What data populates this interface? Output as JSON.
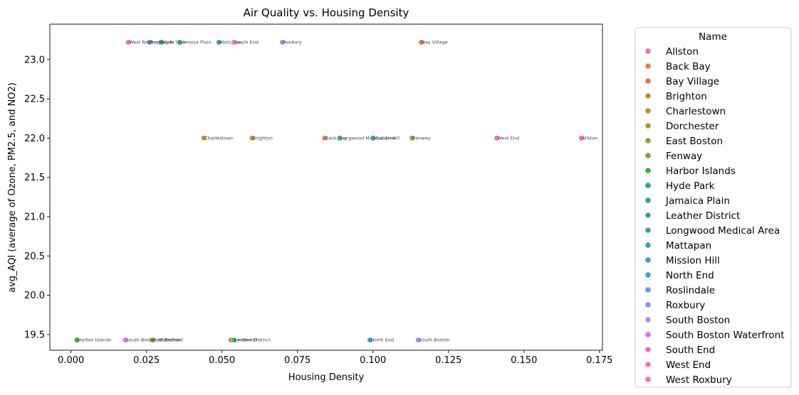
{
  "chart_data": {
    "type": "scatter",
    "title": "Air Quality vs. Housing Density",
    "xlabel": "Housing Density",
    "ylabel": "avg_AQI (average of Ozone, PM2.5, and NO2)",
    "xlim": [
      -0.007,
      0.176
    ],
    "ylim": [
      19.3,
      23.45
    ],
    "xticks": [
      0.0,
      0.025,
      0.05,
      0.075,
      0.1,
      0.125,
      0.15,
      0.175
    ],
    "xtick_labels": [
      "0.000",
      "0.025",
      "0.050",
      "0.075",
      "0.100",
      "0.125",
      "0.150",
      "0.175"
    ],
    "yticks": [
      19.5,
      20.0,
      20.5,
      21.0,
      21.5,
      22.0,
      22.5,
      23.0
    ],
    "ytick_labels": [
      "19.5",
      "20.0",
      "20.5",
      "21.0",
      "21.5",
      "22.0",
      "22.5",
      "23.0"
    ],
    "grid": false,
    "legend_title": "Name",
    "legend_position": "outside-right",
    "series": [
      {
        "name": "Allston",
        "color": "#f0767f",
        "points": [
          {
            "x": 0.169,
            "y": 22.0
          }
        ]
      },
      {
        "name": "Back Bay",
        "color": "#e97b5c",
        "points": [
          {
            "x": 0.084,
            "y": 22.0
          }
        ]
      },
      {
        "name": "Bay Village",
        "color": "#da8039",
        "points": [
          {
            "x": 0.116,
            "y": 23.22
          }
        ]
      },
      {
        "name": "Brighton",
        "color": "#c9892f",
        "points": [
          {
            "x": 0.06,
            "y": 22.0
          }
        ]
      },
      {
        "name": "Charlestown",
        "color": "#b99530",
        "points": [
          {
            "x": 0.044,
            "y": 22.0
          }
        ]
      },
      {
        "name": "Dorchester",
        "color": "#a69b31",
        "points": [
          {
            "x": 0.053,
            "y": 19.43
          }
        ]
      },
      {
        "name": "East Boston",
        "color": "#91a031",
        "points": [
          {
            "x": 0.027,
            "y": 19.43
          }
        ]
      },
      {
        "name": "Fenway",
        "color": "#73a83a",
        "points": [
          {
            "x": 0.113,
            "y": 22.0
          }
        ]
      },
      {
        "name": "Harbor Islands",
        "color": "#39a947",
        "points": [
          {
            "x": 0.002,
            "y": 19.43
          }
        ]
      },
      {
        "name": "Hyde Park",
        "color": "#32a863",
        "points": [
          {
            "x": 0.03,
            "y": 23.22
          }
        ]
      },
      {
        "name": "Jamaica Plain",
        "color": "#34a57a",
        "points": [
          {
            "x": 0.036,
            "y": 23.22
          }
        ]
      },
      {
        "name": "Leather District",
        "color": "#36a38b",
        "points": [
          {
            "x": 0.054,
            "y": 19.43
          }
        ]
      },
      {
        "name": "Longwood Medical Area",
        "color": "#37a29a",
        "points": [
          {
            "x": 0.089,
            "y": 22.0
          }
        ]
      },
      {
        "name": "Mattapan",
        "color": "#39a2ac",
        "points": [
          {
            "x": 0.049,
            "y": 23.22
          }
        ]
      },
      {
        "name": "Mission Hill",
        "color": "#3aa3be",
        "points": [
          {
            "x": 0.1,
            "y": 22.0
          }
        ]
      },
      {
        "name": "North End",
        "color": "#3ba2d1",
        "points": [
          {
            "x": 0.099,
            "y": 19.43
          }
        ]
      },
      {
        "name": "Roslindale",
        "color": "#5a9cf0",
        "points": [
          {
            "x": 0.026,
            "y": 23.22
          }
        ]
      },
      {
        "name": "Roxbury",
        "color": "#9492ee",
        "points": [
          {
            "x": 0.07,
            "y": 23.22
          }
        ]
      },
      {
        "name": "South Boston",
        "color": "#b886ec",
        "points": [
          {
            "x": 0.115,
            "y": 19.43
          }
        ]
      },
      {
        "name": "South Boston Waterfront",
        "color": "#dc73ec",
        "points": [
          {
            "x": 0.018,
            "y": 19.43
          }
        ]
      },
      {
        "name": "South End",
        "color": "#ec6fcf",
        "points": [
          {
            "x": 0.054,
            "y": 23.22
          }
        ]
      },
      {
        "name": "West End",
        "color": "#ef74b4",
        "points": [
          {
            "x": 0.141,
            "y": 22.0
          }
        ]
      },
      {
        "name": "West Roxbury",
        "color": "#f27598",
        "points": [
          {
            "x": 0.019,
            "y": 23.22
          }
        ]
      }
    ]
  }
}
